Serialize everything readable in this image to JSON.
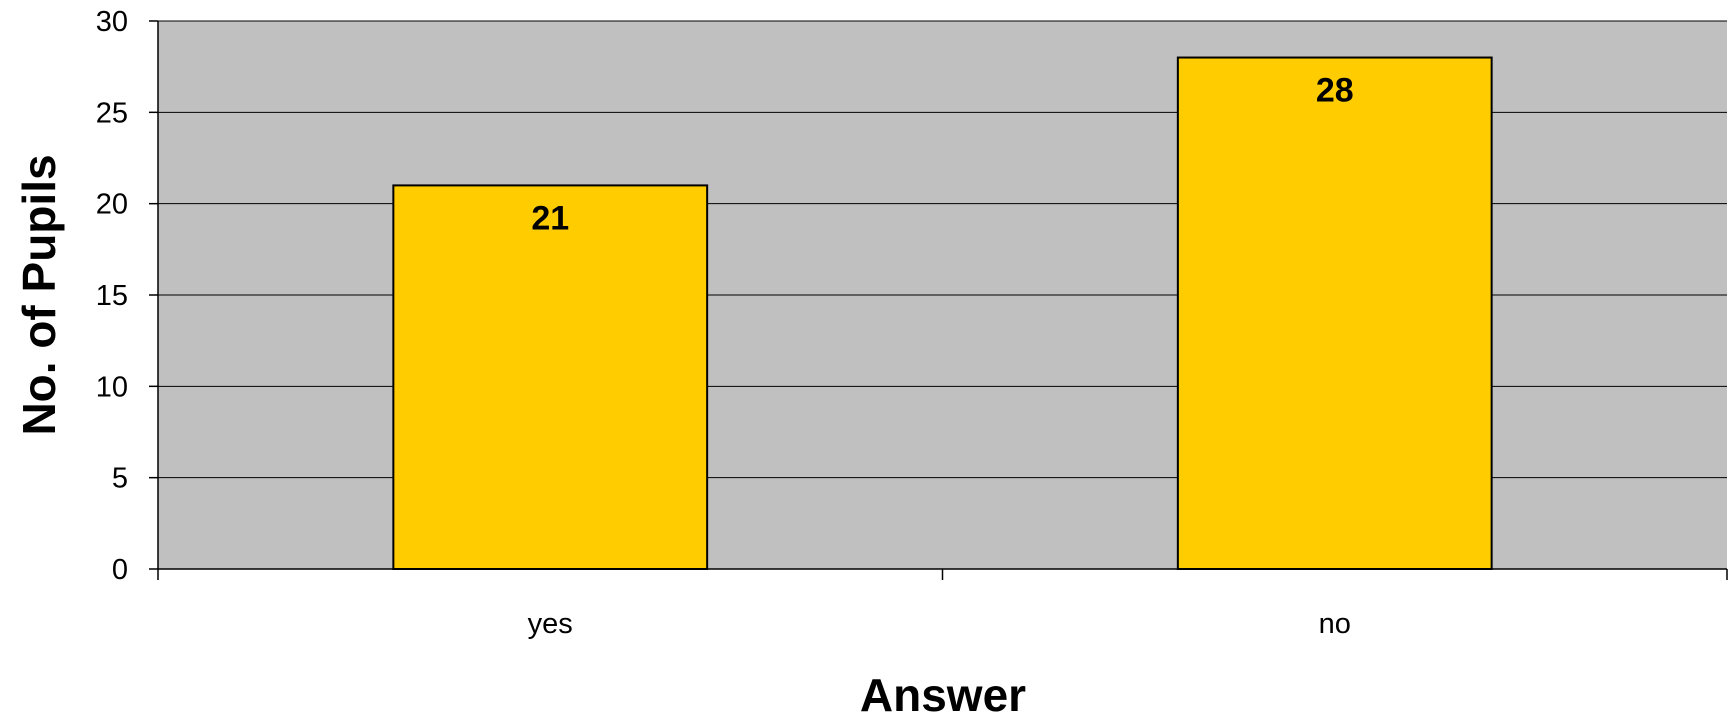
{
  "chart_data": {
    "type": "bar",
    "categories": [
      "yes",
      "no"
    ],
    "values": [
      21,
      28
    ],
    "data_labels": [
      "21",
      "28"
    ],
    "title": "",
    "xlabel": "Answer",
    "ylabel": "No. of Pupils",
    "ylim": [
      0,
      30
    ],
    "yticks": [
      0,
      5,
      10,
      15,
      20,
      25,
      30
    ],
    "ytick_labels": [
      "0",
      "5",
      "10",
      "15",
      "20",
      "25",
      "30"
    ],
    "grid": true,
    "legend": "none",
    "colors": {
      "bar_fill": "#FFCC00",
      "bar_stroke": "#000000",
      "plot_background": "#C0C0C0",
      "gridline": "#000000"
    }
  }
}
